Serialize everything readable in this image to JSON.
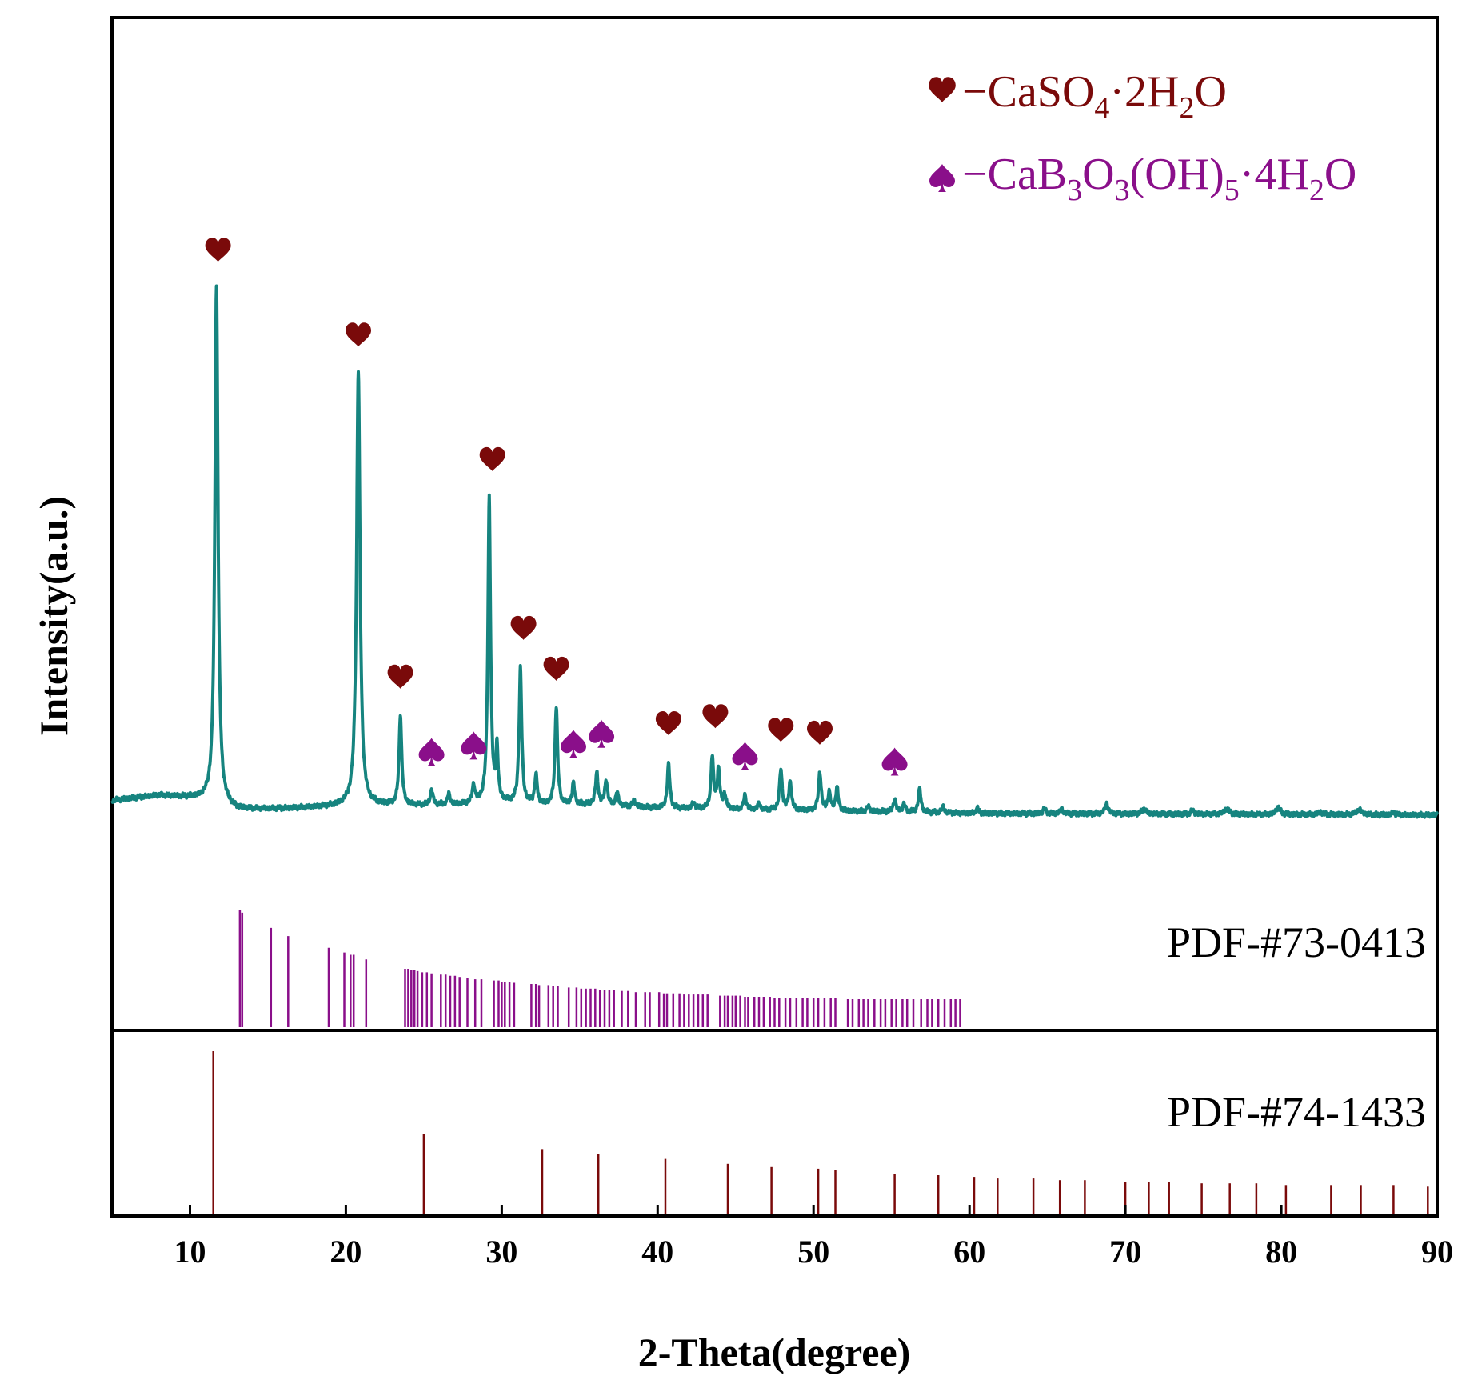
{
  "colors": {
    "pattern": "#16847f",
    "gypsum": "#7a0a0a",
    "borate": "#8a0f8a",
    "axis": "#000000"
  },
  "chart_data": {
    "type": "line",
    "title": "",
    "xlabel": "2-Theta(degree)",
    "ylabel": "Intensity(a.u.)",
    "xlim": [
      5,
      90
    ],
    "xticks": [
      "10",
      "20",
      "30",
      "40",
      "50",
      "60",
      "70",
      "80",
      "90"
    ],
    "legend": [
      {
        "marker": "heart-icon",
        "dash": "−",
        "text": "CaSO",
        "sub1": "4",
        "mid": "·2H",
        "sub2": "2",
        "end": "O",
        "color": "#7a0a0a"
      },
      {
        "marker": "spade-icon",
        "dash": "−",
        "text": "CaB",
        "sub1": "3",
        "mid": "O",
        "sub2": "3",
        "mid2": "(OH)",
        "sub3": "5",
        "end": "·4H",
        "sub4": "2",
        "end2": "O",
        "color": "#8a0f8a"
      }
    ],
    "pattern": {
      "name": "sample",
      "baseline": [
        [
          5,
          0.03
        ],
        [
          8,
          0.04
        ],
        [
          10,
          0.035
        ],
        [
          11,
          0.03
        ],
        [
          13,
          0.012
        ],
        [
          16,
          0.014
        ],
        [
          19,
          0.018
        ],
        [
          22,
          0.02
        ],
        [
          25,
          0.02
        ],
        [
          28,
          0.022
        ],
        [
          30,
          0.025
        ],
        [
          33,
          0.02
        ],
        [
          36,
          0.022
        ],
        [
          40,
          0.015
        ],
        [
          45,
          0.012
        ],
        [
          50,
          0.01
        ],
        [
          55,
          0.008
        ],
        [
          60,
          0.005
        ],
        [
          70,
          0.004
        ],
        [
          80,
          0.003
        ],
        [
          90,
          0.002
        ]
      ],
      "peaks": [
        [
          11.7,
          1.0,
          0.12
        ],
        [
          20.8,
          0.84,
          0.13
        ],
        [
          23.5,
          0.175,
          0.1
        ],
        [
          25.5,
          0.03,
          0.1
        ],
        [
          26.6,
          0.02,
          0.1
        ],
        [
          28.2,
          0.035,
          0.1
        ],
        [
          29.2,
          0.59,
          0.1
        ],
        [
          29.7,
          0.1,
          0.08
        ],
        [
          31.2,
          0.26,
          0.1
        ],
        [
          32.2,
          0.055,
          0.1
        ],
        [
          33.5,
          0.19,
          0.1
        ],
        [
          34.6,
          0.04,
          0.1
        ],
        [
          36.1,
          0.06,
          0.1
        ],
        [
          36.7,
          0.048,
          0.1
        ],
        [
          37.4,
          0.025,
          0.1
        ],
        [
          38.5,
          0.012,
          0.1
        ],
        [
          40.7,
          0.085,
          0.1
        ],
        [
          42.3,
          0.012,
          0.1
        ],
        [
          43.5,
          0.1,
          0.1
        ],
        [
          43.9,
          0.075,
          0.1
        ],
        [
          44.3,
          0.028,
          0.1
        ],
        [
          45.6,
          0.028,
          0.1
        ],
        [
          46.5,
          0.012,
          0.1
        ],
        [
          47.9,
          0.078,
          0.1
        ],
        [
          48.5,
          0.055,
          0.1
        ],
        [
          50.4,
          0.075,
          0.1
        ],
        [
          51.0,
          0.035,
          0.1
        ],
        [
          51.5,
          0.045,
          0.1
        ],
        [
          53.5,
          0.01,
          0.1
        ],
        [
          55.2,
          0.025,
          0.1
        ],
        [
          55.8,
          0.015,
          0.1
        ],
        [
          56.8,
          0.045,
          0.1
        ],
        [
          58.3,
          0.012,
          0.1
        ],
        [
          60.5,
          0.01,
          0.1
        ],
        [
          64.8,
          0.01,
          0.1
        ],
        [
          65.9,
          0.01,
          0.1
        ],
        [
          68.8,
          0.02,
          0.12
        ],
        [
          71.2,
          0.01,
          0.15
        ],
        [
          74.3,
          0.008,
          0.1
        ],
        [
          76.5,
          0.01,
          0.2
        ],
        [
          79.8,
          0.014,
          0.15
        ],
        [
          82.5,
          0.005,
          0.15
        ],
        [
          85.0,
          0.01,
          0.2
        ],
        [
          87.2,
          0.005,
          0.1
        ]
      ]
    },
    "gypsum_markers": [
      11.8,
      20.8,
      23.5,
      29.4,
      31.4,
      33.5,
      40.7,
      43.7,
      47.9,
      50.4
    ],
    "borate_markers": [
      25.5,
      28.2,
      34.6,
      36.4,
      45.6,
      55.2
    ],
    "reference_patterns": [
      {
        "label": "PDF-#73-0413",
        "color": "#8a0f8a",
        "lines": [
          [
            13.2,
            1.0
          ],
          [
            13.35,
            0.98
          ],
          [
            15.2,
            0.85
          ],
          [
            16.3,
            0.78
          ],
          [
            18.9,
            0.68
          ],
          [
            19.9,
            0.64
          ],
          [
            20.3,
            0.62
          ],
          [
            20.5,
            0.62
          ],
          [
            21.3,
            0.58
          ],
          [
            23.8,
            0.5
          ],
          [
            24.0,
            0.5
          ],
          [
            24.2,
            0.49
          ],
          [
            24.4,
            0.49
          ],
          [
            24.6,
            0.48
          ],
          [
            24.9,
            0.47
          ],
          [
            25.2,
            0.47
          ],
          [
            25.5,
            0.46
          ],
          [
            26.1,
            0.45
          ],
          [
            26.4,
            0.45
          ],
          [
            26.7,
            0.44
          ],
          [
            27.0,
            0.44
          ],
          [
            27.3,
            0.43
          ],
          [
            27.8,
            0.42
          ],
          [
            28.3,
            0.41
          ],
          [
            28.7,
            0.41
          ],
          [
            29.5,
            0.4
          ],
          [
            29.8,
            0.4
          ],
          [
            30.0,
            0.39
          ],
          [
            30.2,
            0.39
          ],
          [
            30.5,
            0.39
          ],
          [
            30.8,
            0.38
          ],
          [
            31.9,
            0.37
          ],
          [
            32.2,
            0.37
          ],
          [
            32.4,
            0.36
          ],
          [
            33.0,
            0.36
          ],
          [
            33.3,
            0.35
          ],
          [
            33.6,
            0.35
          ],
          [
            34.3,
            0.34
          ],
          [
            34.8,
            0.34
          ],
          [
            35.1,
            0.33
          ],
          [
            35.4,
            0.33
          ],
          [
            35.7,
            0.33
          ],
          [
            36.0,
            0.33
          ],
          [
            36.3,
            0.32
          ],
          [
            36.6,
            0.32
          ],
          [
            36.9,
            0.32
          ],
          [
            37.2,
            0.32
          ],
          [
            37.7,
            0.31
          ],
          [
            38.1,
            0.31
          ],
          [
            38.6,
            0.3
          ],
          [
            39.2,
            0.3
          ],
          [
            39.5,
            0.3
          ],
          [
            40.1,
            0.3
          ],
          [
            40.4,
            0.29
          ],
          [
            40.6,
            0.29
          ],
          [
            41.0,
            0.29
          ],
          [
            41.4,
            0.29
          ],
          [
            41.7,
            0.28
          ],
          [
            42.0,
            0.28
          ],
          [
            42.3,
            0.28
          ],
          [
            42.6,
            0.28
          ],
          [
            42.9,
            0.28
          ],
          [
            43.2,
            0.28
          ],
          [
            44.0,
            0.27
          ],
          [
            44.3,
            0.27
          ],
          [
            44.5,
            0.27
          ],
          [
            44.8,
            0.27
          ],
          [
            45.0,
            0.27
          ],
          [
            45.3,
            0.27
          ],
          [
            45.6,
            0.26
          ],
          [
            45.8,
            0.26
          ],
          [
            46.2,
            0.26
          ],
          [
            46.5,
            0.26
          ],
          [
            46.8,
            0.26
          ],
          [
            47.2,
            0.26
          ],
          [
            47.5,
            0.25
          ],
          [
            47.8,
            0.25
          ],
          [
            48.2,
            0.25
          ],
          [
            48.5,
            0.25
          ],
          [
            48.9,
            0.25
          ],
          [
            49.3,
            0.25
          ],
          [
            49.6,
            0.25
          ],
          [
            50.0,
            0.25
          ],
          [
            50.3,
            0.25
          ],
          [
            50.7,
            0.25
          ],
          [
            51.1,
            0.25
          ],
          [
            51.4,
            0.25
          ],
          [
            52.2,
            0.24
          ],
          [
            52.5,
            0.24
          ],
          [
            52.9,
            0.24
          ],
          [
            53.2,
            0.24
          ],
          [
            53.5,
            0.24
          ],
          [
            53.9,
            0.24
          ],
          [
            54.3,
            0.24
          ],
          [
            54.6,
            0.24
          ],
          [
            55.0,
            0.24
          ],
          [
            55.3,
            0.24
          ],
          [
            55.7,
            0.24
          ],
          [
            56.0,
            0.24
          ],
          [
            56.4,
            0.24
          ],
          [
            56.9,
            0.24
          ],
          [
            57.3,
            0.24
          ],
          [
            57.6,
            0.24
          ],
          [
            58.0,
            0.24
          ],
          [
            58.4,
            0.24
          ],
          [
            58.8,
            0.24
          ],
          [
            59.1,
            0.24
          ],
          [
            59.4,
            0.24
          ]
        ]
      },
      {
        "label": "PDF-#74-1433",
        "color": "#7a0a0a",
        "lines": [
          [
            11.5,
            1.0
          ],
          [
            25.0,
            0.49
          ],
          [
            32.6,
            0.4
          ],
          [
            36.2,
            0.37
          ],
          [
            40.5,
            0.34
          ],
          [
            44.5,
            0.31
          ],
          [
            47.3,
            0.29
          ],
          [
            50.3,
            0.28
          ],
          [
            51.4,
            0.27
          ],
          [
            55.2,
            0.25
          ],
          [
            58.0,
            0.24
          ],
          [
            60.3,
            0.23
          ],
          [
            61.8,
            0.22
          ],
          [
            64.1,
            0.22
          ],
          [
            65.8,
            0.21
          ],
          [
            67.4,
            0.21
          ],
          [
            70.0,
            0.2
          ],
          [
            71.5,
            0.2
          ],
          [
            72.8,
            0.2
          ],
          [
            74.9,
            0.19
          ],
          [
            76.7,
            0.19
          ],
          [
            78.4,
            0.19
          ],
          [
            80.3,
            0.18
          ],
          [
            83.2,
            0.18
          ],
          [
            85.1,
            0.18
          ],
          [
            87.2,
            0.18
          ],
          [
            89.4,
            0.17
          ]
        ]
      }
    ]
  }
}
